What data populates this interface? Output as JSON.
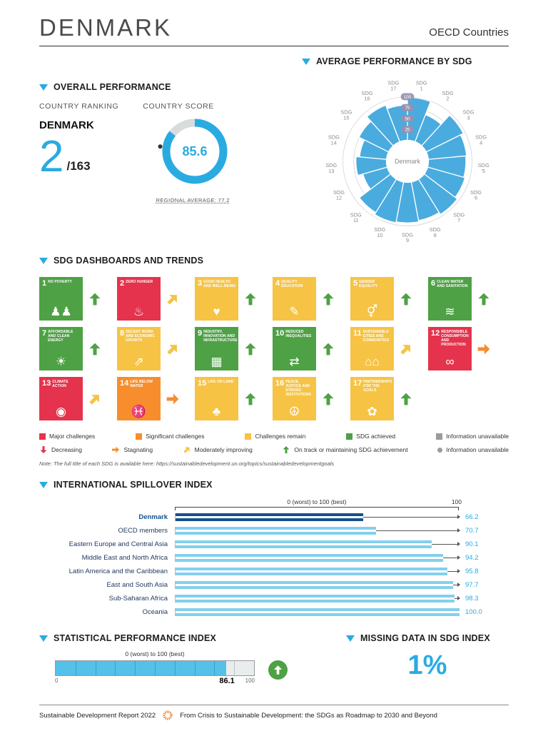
{
  "header": {
    "country": "DENMARK",
    "group": "OECD Countries"
  },
  "colors": {
    "accent": "#29abe2",
    "radial": "#4aabdf",
    "badge": "#9a8fad",
    "bar_light": "#84cfee",
    "bar_dark": "#15518c",
    "status": {
      "red": "#e5334d",
      "orange": "#f78d2d",
      "yellow": "#f6c344",
      "green": "#4ea145",
      "gray": "#9b9b9b"
    },
    "trend": {
      "down": "#e5334d",
      "right": "#f78d2d",
      "upright": "#f6c344",
      "up": "#4ea145",
      "dot": "#9b9b9b"
    }
  },
  "overall": {
    "section_title": "OVERALL PERFORMANCE",
    "ranking_label": "COUNTRY RANKING",
    "country": "DENMARK",
    "rank": "2",
    "rank_total": "/163",
    "score_label": "COUNTRY SCORE",
    "score": 85.6,
    "score_display": "85.6",
    "regional_average": 77.2,
    "regional_note": "REGIONAL AVERAGE: 77.2"
  },
  "radial": {
    "section_title": "AVERAGE PERFORMANCE BY SDG",
    "center_label": "Denmark",
    "axis_ticks": [
      25,
      50,
      75,
      100
    ],
    "labels": [
      "SDG 1",
      "SDG 2",
      "SDG 3",
      "SDG 4",
      "SDG 5",
      "SDG 6",
      "SDG 7",
      "SDG 8",
      "SDG 9",
      "SDG 10",
      "SDG 11",
      "SDG 12",
      "SDG 13",
      "SDG 14",
      "SDG 15",
      "SDG 16",
      "SDG 17"
    ],
    "values": [
      98.8,
      66.5,
      95.0,
      88.0,
      86.0,
      89.0,
      95.0,
      90.0,
      93.0,
      95.0,
      90.0,
      58.0,
      70.0,
      62.0,
      76.0,
      90.0,
      81.0
    ]
  },
  "dashboard": {
    "section_title": "SDG DASHBOARDS AND TRENDS",
    "tiles": [
      {
        "num": "1",
        "title": "NO POVERTY",
        "status": "green",
        "trend": "up",
        "icon": "♟♟"
      },
      {
        "num": "2",
        "title": "ZERO HUNGER",
        "status": "red",
        "trend": "upright",
        "icon": "♨"
      },
      {
        "num": "3",
        "title": "GOOD HEALTH AND WELL-BEING",
        "status": "yellow",
        "trend": "up",
        "icon": "♥"
      },
      {
        "num": "4",
        "title": "QUALITY EDUCATION",
        "status": "yellow",
        "trend": "up",
        "icon": "✎"
      },
      {
        "num": "5",
        "title": "GENDER EQUALITY",
        "status": "yellow",
        "trend": "up",
        "icon": "⚥"
      },
      {
        "num": "6",
        "title": "CLEAN WATER AND SANITATION",
        "status": "green",
        "trend": "up",
        "icon": "≋"
      },
      {
        "num": "7",
        "title": "AFFORDABLE AND CLEAN ENERGY",
        "status": "green",
        "trend": "up",
        "icon": "☀"
      },
      {
        "num": "8",
        "title": "DECENT WORK AND ECONOMIC GROWTH",
        "status": "yellow",
        "trend": "upright",
        "icon": "⇗"
      },
      {
        "num": "9",
        "title": "INDUSTRY, INNOVATION AND INFRASTRUCTURE",
        "status": "green",
        "trend": "up",
        "icon": "▦"
      },
      {
        "num": "10",
        "title": "REDUCED INEQUALITIES",
        "status": "green",
        "trend": "up",
        "icon": "⇄"
      },
      {
        "num": "11",
        "title": "SUSTAINABLE CITIES AND COMMUNITIES",
        "status": "yellow",
        "trend": "upright",
        "icon": "⌂⌂"
      },
      {
        "num": "12",
        "title": "RESPONSIBLE CONSUMPTION AND PRODUCTION",
        "status": "red",
        "trend": "right",
        "icon": "∞"
      },
      {
        "num": "13",
        "title": "CLIMATE ACTION",
        "status": "red",
        "trend": "upright",
        "icon": "◉"
      },
      {
        "num": "14",
        "title": "LIFE BELOW WATER",
        "status": "orange",
        "trend": "right",
        "icon": "♓"
      },
      {
        "num": "15",
        "title": "LIFE ON LAND",
        "status": "yellow",
        "trend": "up",
        "icon": "♣"
      },
      {
        "num": "16",
        "title": "PEACE, JUSTICE AND STRONG INSTITUTIONS",
        "status": "yellow",
        "trend": "up",
        "icon": "☮"
      },
      {
        "num": "17",
        "title": "PARTNERSHIPS FOR THE GOALS",
        "status": "yellow",
        "trend": "up",
        "icon": "✿"
      }
    ],
    "legend_row1": [
      {
        "status": "red",
        "label": "Major challenges"
      },
      {
        "status": "orange",
        "label": "Significant challenges"
      },
      {
        "status": "yellow",
        "label": "Challenges remain"
      },
      {
        "status": "green",
        "label": "SDG achieved"
      },
      {
        "status": "gray",
        "label": "Information unavailable"
      }
    ],
    "legend_row2": [
      {
        "trend": "down",
        "label": "Decreasing"
      },
      {
        "trend": "right",
        "label": "Stagnating"
      },
      {
        "trend": "upright",
        "label": "Moderately improving"
      },
      {
        "trend": "up",
        "label": "On track or maintaining SDG achievement"
      },
      {
        "trend": "dot",
        "label": "Information unavailable"
      }
    ],
    "note": "Note: The full title of each SDG is available here: https://sustainabledevelopment.un.org/topics/sustainabledevelopmentgoals"
  },
  "spillover": {
    "section_title": "INTERNATIONAL SPILLOVER INDEX",
    "axis_label": "0 (worst) to 100 (best)",
    "axis_max_label": "100",
    "rows": [
      {
        "label": "Denmark",
        "value": 66.2,
        "display": "66.2",
        "highlight": true
      },
      {
        "label": "OECD members",
        "value": 70.7,
        "display": "70.7",
        "highlight": false
      },
      {
        "label": "Eastern Europe and Central Asia",
        "value": 90.1,
        "display": "90.1",
        "highlight": false
      },
      {
        "label": "Middle East and North Africa",
        "value": 94.2,
        "display": "94.2",
        "highlight": false
      },
      {
        "label": "Latin America and the Caribbean",
        "value": 95.8,
        "display": "95.8",
        "highlight": false
      },
      {
        "label": "East and South Asia",
        "value": 97.7,
        "display": "97.7",
        "highlight": false
      },
      {
        "label": "Sub-Saharan Africa",
        "value": 98.3,
        "display": "98.3",
        "highlight": false
      },
      {
        "label": "Oceania",
        "value": 100.0,
        "display": "100.0",
        "highlight": false
      }
    ]
  },
  "spi": {
    "section_title": "STATISTICAL PERFORMANCE INDEX",
    "axis_label": "0 (worst) to 100 (best)",
    "min_label": "0",
    "max_label": "100",
    "value": 86.1,
    "value_display": "86.1",
    "trend": "up"
  },
  "missing": {
    "section_title": "MISSING DATA IN SDG INDEX",
    "value": "1%"
  },
  "footer": {
    "left": "Sustainable Development Report 2022",
    "right": "From Crisis to Sustainable Development: the SDGs as Roadmap to 2030 and Beyond"
  },
  "chart_data": [
    {
      "type": "bar",
      "subtype": "radial",
      "title": "AVERAGE PERFORMANCE BY SDG",
      "categories": [
        "SDG 1",
        "SDG 2",
        "SDG 3",
        "SDG 4",
        "SDG 5",
        "SDG 6",
        "SDG 7",
        "SDG 8",
        "SDG 9",
        "SDG 10",
        "SDG 11",
        "SDG 12",
        "SDG 13",
        "SDG 14",
        "SDG 15",
        "SDG 16",
        "SDG 17"
      ],
      "values": [
        98.8,
        66.5,
        95.0,
        88.0,
        86.0,
        89.0,
        95.0,
        90.0,
        93.0,
        95.0,
        90.0,
        58.0,
        70.0,
        62.0,
        76.0,
        90.0,
        81.0
      ],
      "ylim": [
        0,
        100
      ],
      "center_label": "Denmark",
      "axis_ticks": [
        25,
        50,
        75,
        100
      ]
    },
    {
      "type": "bar",
      "orientation": "horizontal",
      "title": "INTERNATIONAL SPILLOVER INDEX",
      "categories": [
        "Denmark",
        "OECD members",
        "Eastern Europe and Central Asia",
        "Middle East and North Africa",
        "Latin America and the Caribbean",
        "East and South Asia",
        "Sub-Saharan Africa",
        "Oceania"
      ],
      "values": [
        66.2,
        70.7,
        90.1,
        94.2,
        95.8,
        97.7,
        98.3,
        100.0
      ],
      "xlabel": "0 (worst) to 100 (best)",
      "xlim": [
        0,
        100
      ]
    },
    {
      "type": "bar",
      "subtype": "gauge",
      "title": "STATISTICAL PERFORMANCE INDEX",
      "categories": [
        "Denmark"
      ],
      "values": [
        86.1
      ],
      "xlabel": "0 (worst) to 100 (best)",
      "xlim": [
        0,
        100
      ]
    },
    {
      "type": "pie",
      "subtype": "donut-gauge",
      "title": "COUNTRY SCORE",
      "categories": [
        "score"
      ],
      "values": [
        85.6
      ],
      "ylim": [
        0,
        100
      ],
      "annotations": [
        "REGIONAL AVERAGE: 77.2"
      ]
    }
  ]
}
